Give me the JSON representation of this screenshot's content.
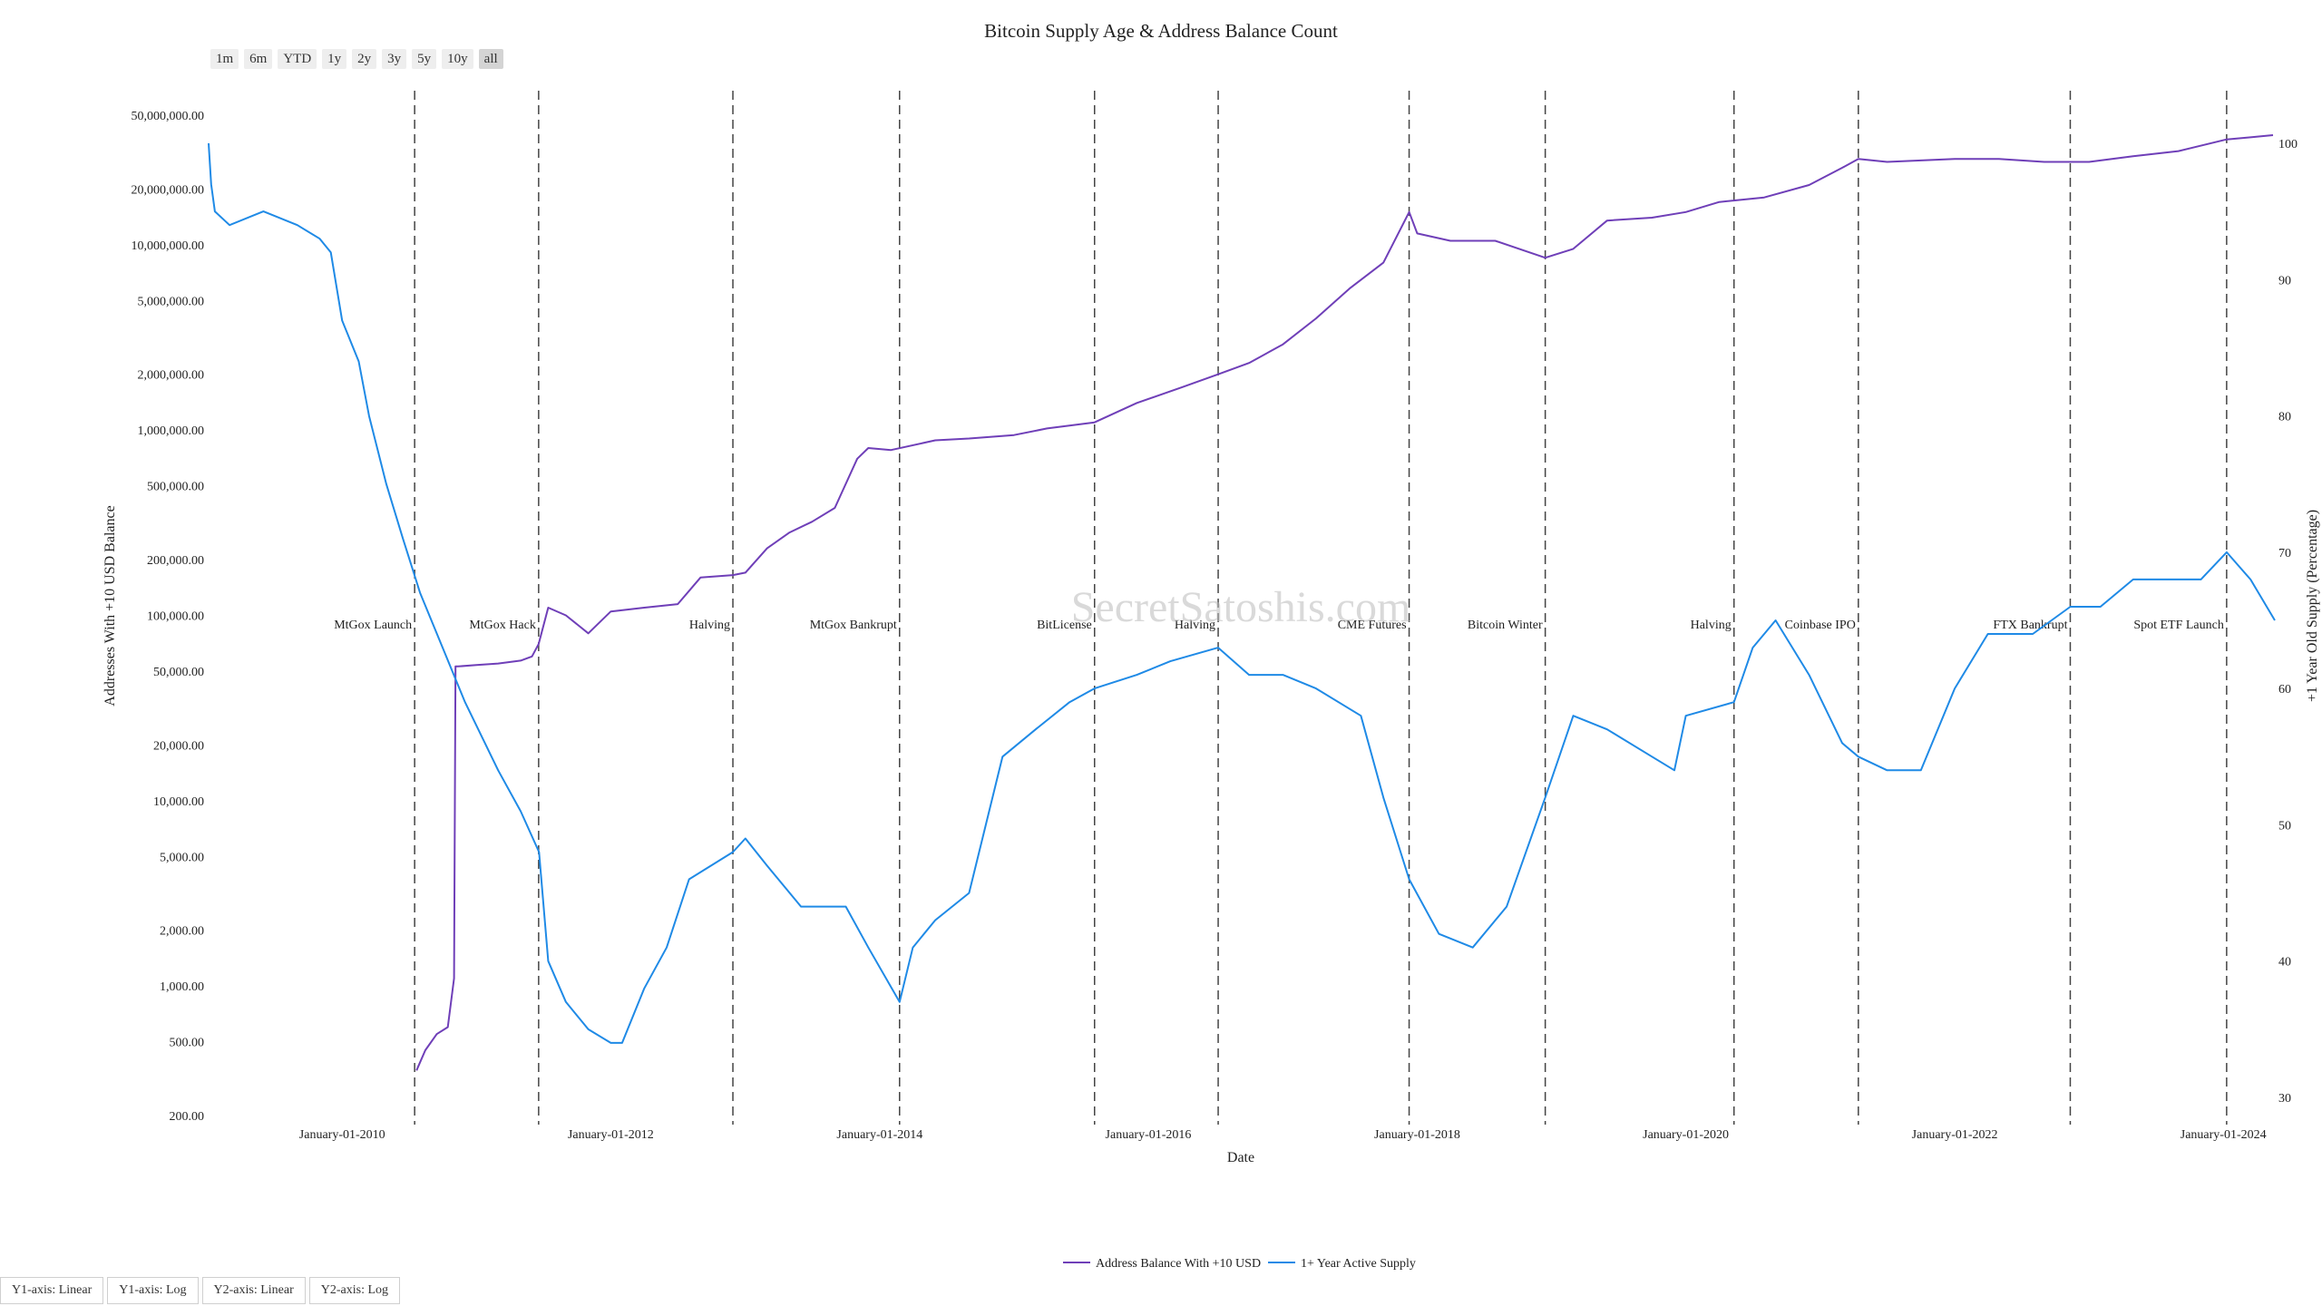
{
  "range_buttons": [
    {
      "label": "1m",
      "active": false
    },
    {
      "label": "6m",
      "active": false
    },
    {
      "label": "YTD",
      "active": false
    },
    {
      "label": "1y",
      "active": false
    },
    {
      "label": "2y",
      "active": false
    },
    {
      "label": "3y",
      "active": false
    },
    {
      "label": "5y",
      "active": false
    },
    {
      "label": "10y",
      "active": false
    },
    {
      "label": "all",
      "active": true
    }
  ],
  "axis_buttons": [
    "Y1-axis: Linear",
    "Y1-axis: Log",
    "Y2-axis: Linear",
    "Y2-axis: Log"
  ],
  "watermark": "SecretSatoshis.com",
  "chart_data": {
    "type": "line",
    "title": "Bitcoin Supply Age & Address Balance Count",
    "xlabel": "Date",
    "ylabel": "Addresses With +10 USD Balance",
    "y2label": "+1 Year Old Supply (Percentage)",
    "xlim": [
      "2009-01-03",
      "2024-05-20"
    ],
    "ylim": [
      200,
      50000000
    ],
    "y_scale": "log",
    "y2lim": [
      30,
      100
    ],
    "y2_scale": "linear",
    "grid": false,
    "legend_position": "bottom-center",
    "x_ticks": [
      "January-01-2010",
      "January-01-2012",
      "January-01-2014",
      "January-01-2016",
      "January-01-2018",
      "January-01-2020",
      "January-01-2022",
      "January-01-2024"
    ],
    "y_ticks": [
      "200.00",
      "500.00",
      "1,000.00",
      "2,000.00",
      "5,000.00",
      "10,000.00",
      "20,000.00",
      "50,000.00",
      "100,000.00",
      "200,000.00",
      "500,000.00",
      "1,000,000.00",
      "2,000,000.00",
      "5,000,000.00",
      "10,000,000.00",
      "20,000,000.00",
      "50,000,000.00"
    ],
    "y2_ticks": [
      "30",
      "40",
      "50",
      "60",
      "70",
      "80",
      "90",
      "100"
    ],
    "events": [
      {
        "date": "2010-07-17",
        "label": "MtGox Launch"
      },
      {
        "date": "2011-06-19",
        "label": "MtGox Hack"
      },
      {
        "date": "2012-11-28",
        "label": "Halving"
      },
      {
        "date": "2014-02-24",
        "label": "MtGox Bankrupt"
      },
      {
        "date": "2015-08-08",
        "label": "BitLicense"
      },
      {
        "date": "2016-07-09",
        "label": "Halving"
      },
      {
        "date": "2017-12-10",
        "label": "CME Futures"
      },
      {
        "date": "2018-12-15",
        "label": "Bitcoin Winter"
      },
      {
        "date": "2020-05-11",
        "label": "Halving"
      },
      {
        "date": "2021-04-14",
        "label": "Coinbase IPO"
      },
      {
        "date": "2022-11-11",
        "label": "FTX Bankrupt"
      },
      {
        "date": "2024-01-10",
        "label": "Spot ETF Launch"
      }
    ],
    "series": [
      {
        "name": "Address Balance With +10 USD",
        "axis": "y1",
        "color": "#6f3fb8",
        "x": [
          "2010-07-22",
          "2010-08-15",
          "2010-09-15",
          "2010-10-15",
          "2010-11-01",
          "2010-11-05",
          "2010-11-10",
          "2010-11-12",
          "2011-01-01",
          "2011-03-01",
          "2011-05-01",
          "2011-06-01",
          "2011-06-19",
          "2011-07-15",
          "2011-09-01",
          "2011-11-01",
          "2012-01-01",
          "2012-04-01",
          "2012-07-01",
          "2012-09-01",
          "2012-11-28",
          "2013-01-01",
          "2013-03-01",
          "2013-05-01",
          "2013-07-01",
          "2013-09-01",
          "2013-11-01",
          "2013-12-01",
          "2014-02-01",
          "2014-06-01",
          "2014-09-01",
          "2015-01-01",
          "2015-04-01",
          "2015-08-08",
          "2015-12-01",
          "2016-04-01",
          "2016-07-09",
          "2016-10-01",
          "2017-01-01",
          "2017-04-01",
          "2017-07-01",
          "2017-10-01",
          "2017-12-10",
          "2018-01-01",
          "2018-04-01",
          "2018-08-01",
          "2018-12-15",
          "2019-03-01",
          "2019-06-01",
          "2019-10-01",
          "2020-01-01",
          "2020-04-01",
          "2020-08-01",
          "2020-12-01",
          "2021-03-01",
          "2021-04-14",
          "2021-07-01",
          "2021-10-01",
          "2022-01-01",
          "2022-05-01",
          "2022-09-01",
          "2023-01-01",
          "2023-05-01",
          "2023-09-01",
          "2024-01-10",
          "2024-03-15",
          "2024-05-15"
        ],
        "values": [
          350,
          450,
          550,
          600,
          1100,
          53000,
          53000,
          53000,
          54000,
          55000,
          57000,
          60000,
          70000,
          110000,
          100000,
          80000,
          105000,
          110000,
          115000,
          160000,
          165000,
          170000,
          230000,
          280000,
          320000,
          380000,
          700000,
          800000,
          780000,
          880000,
          900000,
          940000,
          1020000,
          1100000,
          1400000,
          1700000,
          2000000,
          2300000,
          2900000,
          4000000,
          5800000,
          8000000,
          15000000,
          11500000,
          10500000,
          10500000,
          8500000,
          9500000,
          13500000,
          14000000,
          15000000,
          17000000,
          18000000,
          21000000,
          26000000,
          29000000,
          28000000,
          28500000,
          29000000,
          29000000,
          28000000,
          28000000,
          30000000,
          32000000,
          37000000,
          38000000,
          39000000
        ]
      },
      {
        "name": "1+ Year Active Supply",
        "axis": "y2",
        "color": "#1f8ae6",
        "x": [
          "2009-01-03",
          "2009-01-10",
          "2009-01-20",
          "2009-03-01",
          "2009-06-01",
          "2009-09-01",
          "2009-11-01",
          "2009-12-01",
          "2010-01-01",
          "2010-02-15",
          "2010-03-15",
          "2010-05-01",
          "2010-06-15",
          "2010-08-01",
          "2010-10-01",
          "2010-12-01",
          "2011-03-01",
          "2011-05-01",
          "2011-06-20",
          "2011-07-15",
          "2011-09-01",
          "2011-11-01",
          "2012-01-01",
          "2012-02-01",
          "2012-04-01",
          "2012-06-01",
          "2012-08-01",
          "2012-11-28",
          "2013-01-01",
          "2013-03-01",
          "2013-06-01",
          "2013-10-01",
          "2013-12-01",
          "2014-02-24",
          "2014-04-01",
          "2014-06-01",
          "2014-09-01",
          "2014-12-01",
          "2015-03-01",
          "2015-06-01",
          "2015-08-08",
          "2015-12-01",
          "2016-03-01",
          "2016-07-09",
          "2016-10-01",
          "2017-01-01",
          "2017-04-01",
          "2017-08-01",
          "2017-10-01",
          "2017-12-10",
          "2018-03-01",
          "2018-06-01",
          "2018-09-01",
          "2018-12-15",
          "2019-03-01",
          "2019-06-01",
          "2019-10-01",
          "2019-12-01",
          "2020-01-01",
          "2020-05-11",
          "2020-07-01",
          "2020-09-01",
          "2020-12-01",
          "2021-03-01",
          "2021-04-14",
          "2021-07-01",
          "2021-10-01",
          "2022-01-01",
          "2022-04-01",
          "2022-08-01",
          "2022-11-11",
          "2023-02-01",
          "2023-05-01",
          "2023-08-01",
          "2023-11-01",
          "2024-01-10",
          "2024-03-15",
          "2024-05-20"
        ],
        "values": [
          100,
          97,
          95,
          94,
          95,
          94,
          93,
          92,
          87,
          84,
          80,
          75,
          71,
          67,
          63,
          59,
          54,
          51,
          48,
          40,
          37,
          35,
          34,
          34,
          38,
          41,
          46,
          48,
          49,
          47,
          44,
          44,
          41,
          37,
          41,
          43,
          45,
          55,
          57,
          59,
          60,
          61,
          62,
          63,
          61,
          61,
          60,
          58,
          52,
          46,
          42,
          41,
          44,
          52,
          58,
          57,
          55,
          54,
          58,
          59,
          63,
          65,
          61,
          56,
          55,
          54,
          54,
          60,
          64,
          64,
          66,
          66,
          68,
          68,
          68,
          70,
          68,
          65
        ]
      }
    ]
  }
}
